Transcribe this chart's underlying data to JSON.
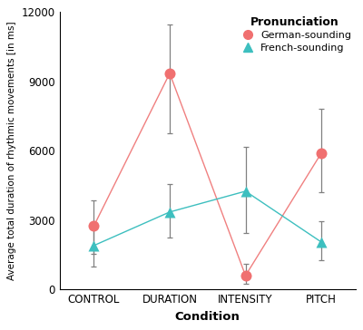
{
  "conditions": [
    "CONTROL",
    "DURATION",
    "INTENSITY",
    "PITCH"
  ],
  "german": {
    "values": [
      2750,
      9350,
      600,
      5900
    ],
    "errors_upper": [
      1100,
      2100,
      500,
      1900
    ],
    "errors_lower": [
      1200,
      2600,
      350,
      1700
    ],
    "color": "#F07070",
    "marker": "o",
    "label": "German-sounding"
  },
  "french": {
    "values": [
      1900,
      3350,
      4250,
      2050
    ],
    "errors_upper": [
      950,
      1200,
      1900,
      900
    ],
    "errors_lower": [
      900,
      1100,
      1800,
      800
    ],
    "color": "#3DBFBF",
    "marker": "^",
    "label": "French-sounding"
  },
  "legend_title": "Pronunciation",
  "xlabel": "Condition",
  "ylabel": "Average total duration of rhythmic movements [in ms]",
  "ylim": [
    0,
    12000
  ],
  "yticks": [
    0,
    3000,
    6000,
    9000,
    12000
  ],
  "error_color": "#808080",
  "line_german": "#F08080",
  "line_french": "#3DBFBF",
  "figsize": [
    4.0,
    3.64
  ],
  "dpi": 100
}
